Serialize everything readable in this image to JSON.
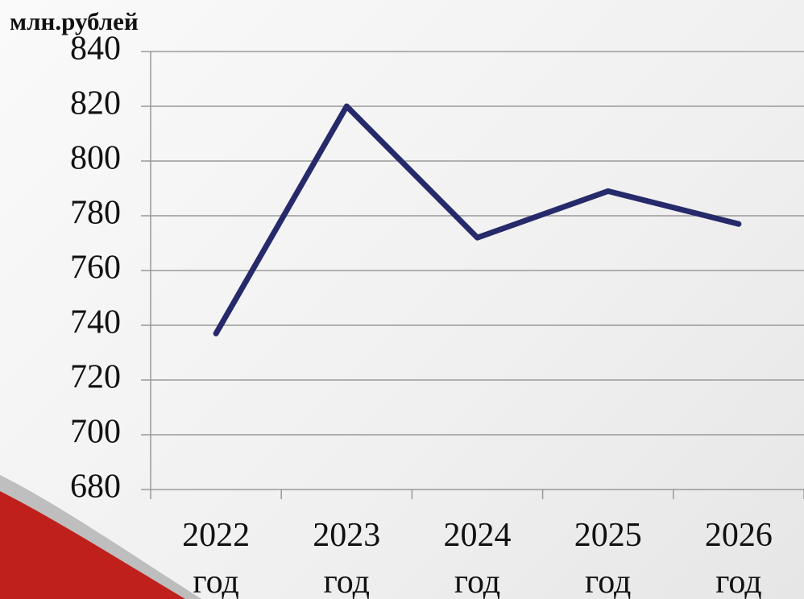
{
  "chart_data": {
    "type": "line",
    "y_label": "млн.рублей",
    "categories": [
      "2022 год",
      "2023 год",
      "2024 год",
      "2025 год",
      "2026 год"
    ],
    "values": [
      737,
      820,
      772,
      789,
      777
    ],
    "color": "#262a6b",
    "ylim": [
      680,
      840
    ],
    "yticks": [
      680,
      700,
      720,
      740,
      760,
      780,
      800,
      820,
      840
    ],
    "grid": true
  }
}
